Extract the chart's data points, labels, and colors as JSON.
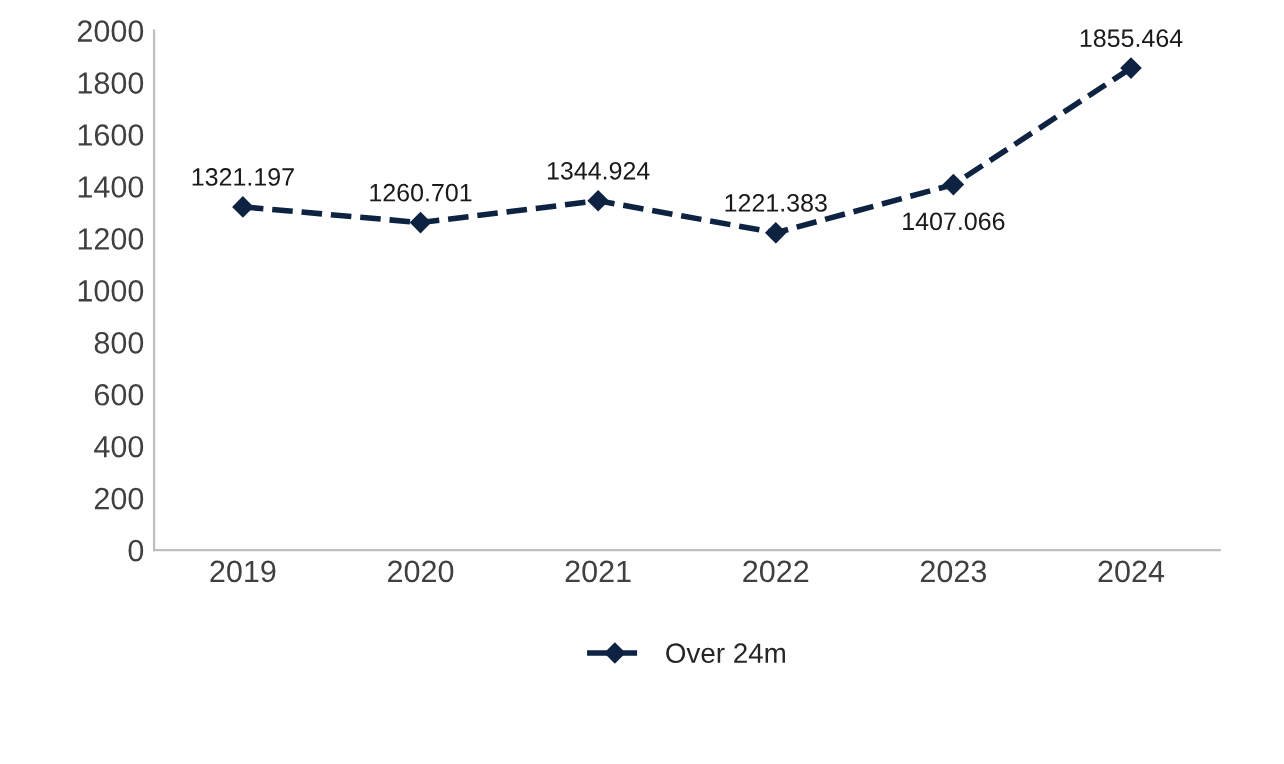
{
  "chart_data": {
    "type": "line",
    "categories": [
      "2019",
      "2020",
      "2021",
      "2022",
      "2023",
      "2024"
    ],
    "series": [
      {
        "name": "Over 24m",
        "color": "#0e2341",
        "values": [
          1321.197,
          1260.701,
          1344.924,
          1221.383,
          1407.066,
          1855.464
        ]
      }
    ],
    "ylim": [
      0,
      2000
    ],
    "yticks": [
      0,
      200,
      400,
      600,
      800,
      1000,
      1200,
      1400,
      1600,
      1800,
      2000
    ],
    "data_labels": true,
    "marker": "diamond",
    "line_style": "dashed",
    "grid": false,
    "legend": "bottom"
  }
}
